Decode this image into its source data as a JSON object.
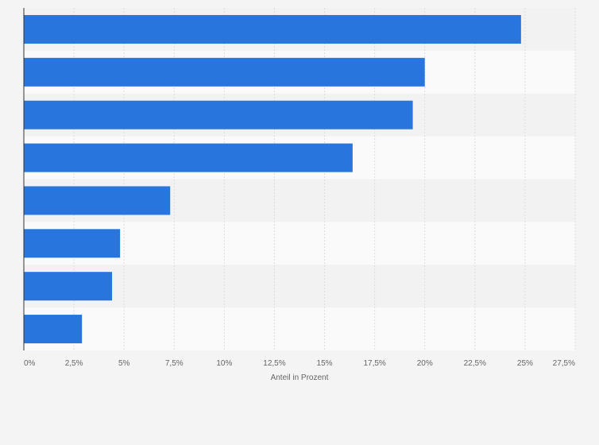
{
  "chart_data": {
    "type": "bar",
    "orientation": "horizontal",
    "title": "",
    "xlabel": "Anteil in Prozent",
    "ylabel": "",
    "categories": [
      "",
      "",
      "",
      "",
      "",
      "",
      "",
      ""
    ],
    "values": [
      24.8,
      20.0,
      19.4,
      16.4,
      7.3,
      4.8,
      4.4,
      2.9
    ],
    "xlim": [
      0,
      27.5
    ],
    "x_ticks": [
      0,
      2.5,
      5,
      7.5,
      10,
      12.5,
      15,
      17.5,
      20,
      22.5,
      25,
      27.5
    ],
    "x_tick_labels": [
      "0%",
      "2,5%",
      "5%",
      "7,5%",
      "10%",
      "12,5%",
      "15%",
      "17,5%",
      "20%",
      "22,5%",
      "25%",
      "27,5%"
    ],
    "grid": true,
    "legend": "none",
    "colors": {
      "bar": "#2876dd",
      "background": "#f4f4f4",
      "band_light": "#fafafa",
      "band_dark": "#f2f2f2",
      "grid": "#dddddd",
      "axis": "#333333",
      "text": "#666666"
    }
  }
}
